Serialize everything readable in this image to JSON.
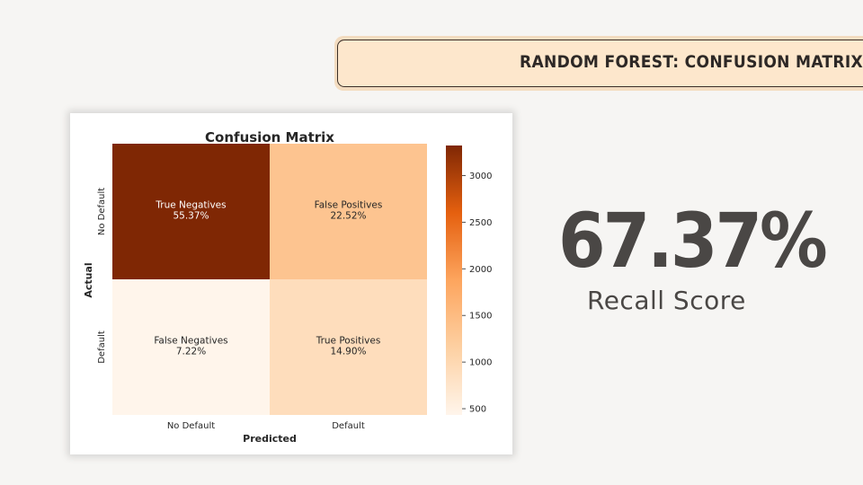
{
  "banner": {
    "title": "RANDOM FOREST: CONFUSION MATRIX"
  },
  "metric": {
    "value": "67.37%",
    "label": "Recall Score"
  },
  "colors": {
    "background": "#f6f5f3",
    "banner_fill": "#fde7cc",
    "scale_high": "#7f2704",
    "scale_mid": "#fdb97d",
    "scale_low": "#fcf3ea"
  },
  "chart_data": {
    "type": "heatmap",
    "title": "Confusion Matrix",
    "xlabel": "Predicted",
    "ylabel": "Actual",
    "x_categories": [
      "No Default",
      "Default"
    ],
    "y_categories": [
      "No Default",
      "Default"
    ],
    "cells": [
      {
        "row": 0,
        "col": 0,
        "label": "True Negatives",
        "percent": "55.37%",
        "count": 3322
      },
      {
        "row": 0,
        "col": 1,
        "label": "False Positives",
        "percent": "22.52%",
        "count": 1351
      },
      {
        "row": 1,
        "col": 0,
        "label": "False Negatives",
        "percent": "7.22%",
        "count": 433
      },
      {
        "row": 1,
        "col": 1,
        "label": "True Positives",
        "percent": "14.90%",
        "count": 894
      }
    ],
    "colorbar": {
      "ticks": [
        3000,
        2500,
        2000,
        1500,
        1000,
        500
      ],
      "range": [
        433,
        3322
      ]
    },
    "colormap": "Oranges"
  }
}
